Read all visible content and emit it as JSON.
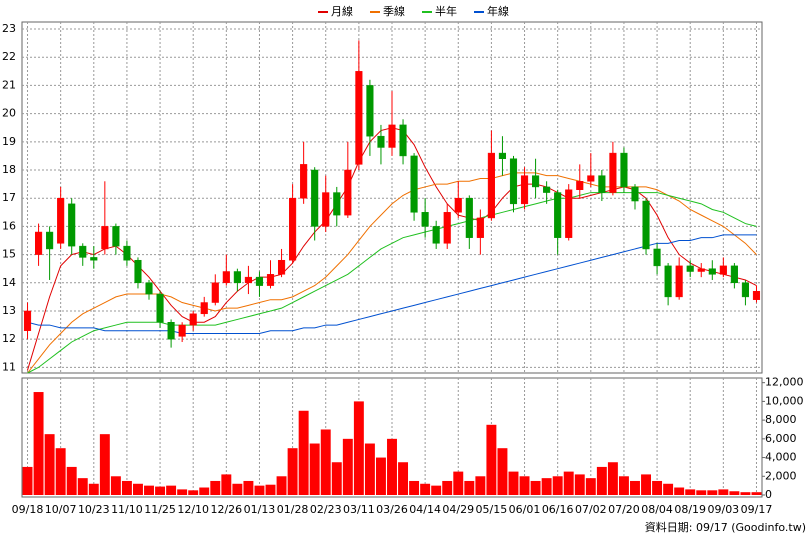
{
  "chart_data": {
    "type": "candlestick",
    "categories": [
      "09/18",
      null,
      null,
      "10/07",
      null,
      null,
      "10/23",
      null,
      null,
      "11/10",
      null,
      null,
      "11/25",
      null,
      null,
      "12/10",
      null,
      null,
      "12/26",
      null,
      null,
      "01/13",
      null,
      null,
      "01/28",
      null,
      null,
      "02/23",
      null,
      null,
      "03/11",
      null,
      null,
      "03/26",
      null,
      null,
      "04/14",
      null,
      null,
      "04/29",
      null,
      null,
      "05/15",
      null,
      null,
      "06/01",
      null,
      null,
      "06/16",
      null,
      null,
      "07/02",
      null,
      null,
      "07/20",
      null,
      null,
      "08/04",
      null,
      null,
      "08/19",
      null,
      null,
      "09/03",
      null,
      null,
      "09/17"
    ],
    "open": [
      12.3,
      15.0,
      15.8,
      15.4,
      16.8,
      15.3,
      14.9,
      15.2,
      16.0,
      15.3,
      14.8,
      14.0,
      13.6,
      12.6,
      12.1,
      12.5,
      12.9,
      13.3,
      14.0,
      14.4,
      14.0,
      14.2,
      13.9,
      14.3,
      14.8,
      17.0,
      18.0,
      16.0,
      17.2,
      16.4,
      18.2,
      21.0,
      19.2,
      18.8,
      19.6,
      18.5,
      16.5,
      16.0,
      15.4,
      16.5,
      17.0,
      15.6,
      16.3,
      18.6,
      18.4,
      16.8,
      17.8,
      17.4,
      17.2,
      15.6,
      17.3,
      17.6,
      17.8,
      17.2,
      18.6,
      17.4,
      16.9,
      15.2,
      14.6,
      13.5,
      14.6,
      14.4,
      14.5,
      14.3,
      14.6,
      14.0,
      13.4
    ],
    "high": [
      13.3,
      16.1,
      16.0,
      17.4,
      17.0,
      15.4,
      15.3,
      17.6,
      16.1,
      15.5,
      14.9,
      14.1,
      13.7,
      12.7,
      12.6,
      13.0,
      13.5,
      14.3,
      15.0,
      14.5,
      14.6,
      14.4,
      14.8,
      15.2,
      17.5,
      19.0,
      18.1,
      17.8,
      17.4,
      19.0,
      22.6,
      21.2,
      19.6,
      20.8,
      19.8,
      18.6,
      17.0,
      16.2,
      16.8,
      17.6,
      17.1,
      16.6,
      19.4,
      19.2,
      18.5,
      18.1,
      18.4,
      17.6,
      17.3,
      17.5,
      18.2,
      18.6,
      18.0,
      19.0,
      18.8,
      17.5,
      17.0,
      15.4,
      14.7,
      14.9,
      14.8,
      14.7,
      14.8,
      14.9,
      14.7,
      14.1,
      13.9
    ],
    "low": [
      12.0,
      14.6,
      14.1,
      15.2,
      15.0,
      14.6,
      14.5,
      15.0,
      15.0,
      14.6,
      13.8,
      13.4,
      12.4,
      11.7,
      11.9,
      12.3,
      12.8,
      13.2,
      13.9,
      13.7,
      13.6,
      13.5,
      13.8,
      14.2,
      14.7,
      16.8,
      15.5,
      15.8,
      16.0,
      16.3,
      18.0,
      18.5,
      18.2,
      18.5,
      18.2,
      16.2,
      15.6,
      15.2,
      15.2,
      16.3,
      15.2,
      15.0,
      16.2,
      17.8,
      16.5,
      16.6,
      17.0,
      16.8,
      15.0,
      15.5,
      17.0,
      17.4,
      16.9,
      17.1,
      17.2,
      16.6,
      15.0,
      14.3,
      13.2,
      13.4,
      14.2,
      14.2,
      14.1,
      14.2,
      13.8,
      13.2,
      13.3
    ],
    "close": [
      13.0,
      15.8,
      15.2,
      17.0,
      15.3,
      14.9,
      14.8,
      16.0,
      15.3,
      14.8,
      14.0,
      13.6,
      12.6,
      12.0,
      12.5,
      12.9,
      13.3,
      14.0,
      14.4,
      14.0,
      14.2,
      13.9,
      14.3,
      14.8,
      17.0,
      18.2,
      16.0,
      17.2,
      16.4,
      18.0,
      21.5,
      19.2,
      18.8,
      19.6,
      18.5,
      16.5,
      16.0,
      15.4,
      16.5,
      17.0,
      15.6,
      16.3,
      18.6,
      18.4,
      16.8,
      17.8,
      17.4,
      17.2,
      15.6,
      17.3,
      17.6,
      17.8,
      17.2,
      18.6,
      17.4,
      16.9,
      15.2,
      14.6,
      13.5,
      14.6,
      14.4,
      14.5,
      14.3,
      14.6,
      14.0,
      13.5,
      13.7
    ],
    "up_color": "#ff0000",
    "down_color": "#009900",
    "ylim": [
      10.8,
      23.25
    ],
    "yticks": [
      11,
      12,
      13,
      14,
      15,
      16,
      17,
      18,
      19,
      20,
      21,
      22,
      23
    ],
    "grid": true,
    "legend": "top",
    "series": [
      {
        "name": "月線",
        "color": "#e00000",
        "values": [
          10.9,
          12.2,
          13.5,
          14.6,
          15.0,
          15.1,
          15.0,
          15.2,
          15.3,
          15.0,
          14.6,
          14.2,
          13.7,
          13.2,
          12.8,
          12.6,
          12.6,
          12.8,
          13.3,
          13.7,
          14.0,
          14.2,
          14.2,
          14.3,
          14.7,
          15.3,
          15.8,
          16.2,
          16.8,
          17.4,
          18.3,
          19.0,
          19.4,
          19.5,
          19.4,
          18.9,
          18.1,
          17.4,
          16.8,
          16.4,
          16.3,
          16.2,
          16.5,
          17.0,
          17.4,
          17.5,
          17.5,
          17.4,
          17.2,
          17.0,
          17.0,
          17.1,
          17.2,
          17.3,
          17.4,
          17.3,
          17.0,
          16.4,
          15.6,
          15.0,
          14.7,
          14.5,
          14.4,
          14.3,
          14.2,
          14.1,
          13.9
        ]
      },
      {
        "name": "季線",
        "color": "#f07000",
        "values": [
          10.8,
          11.3,
          11.8,
          12.2,
          12.6,
          12.9,
          13.1,
          13.3,
          13.5,
          13.6,
          13.6,
          13.6,
          13.6,
          13.5,
          13.3,
          13.2,
          13.1,
          13.0,
          13.1,
          13.1,
          13.2,
          13.3,
          13.4,
          13.4,
          13.5,
          13.7,
          13.9,
          14.2,
          14.6,
          15.0,
          15.5,
          16.0,
          16.4,
          16.8,
          17.1,
          17.3,
          17.4,
          17.5,
          17.5,
          17.6,
          17.6,
          17.7,
          17.7,
          17.8,
          17.9,
          17.9,
          17.9,
          17.8,
          17.8,
          17.7,
          17.6,
          17.5,
          17.4,
          17.4,
          17.4,
          17.4,
          17.4,
          17.3,
          17.1,
          16.9,
          16.6,
          16.4,
          16.2,
          16.0,
          15.7,
          15.4,
          15.0
        ]
      },
      {
        "name": "半年",
        "color": "#20c020",
        "values": [
          10.8,
          11.0,
          11.3,
          11.6,
          11.9,
          12.1,
          12.3,
          12.4,
          12.5,
          12.6,
          12.6,
          12.6,
          12.6,
          12.5,
          12.5,
          12.5,
          12.5,
          12.5,
          12.6,
          12.7,
          12.8,
          12.9,
          13.0,
          13.1,
          13.3,
          13.5,
          13.7,
          13.9,
          14.1,
          14.3,
          14.6,
          14.9,
          15.2,
          15.4,
          15.6,
          15.7,
          15.8,
          15.9,
          16.0,
          16.1,
          16.2,
          16.3,
          16.4,
          16.5,
          16.6,
          16.7,
          16.8,
          16.9,
          17.0,
          17.0,
          17.1,
          17.2,
          17.2,
          17.2,
          17.2,
          17.2,
          17.2,
          17.2,
          17.1,
          17.0,
          16.9,
          16.8,
          16.6,
          16.5,
          16.3,
          16.1,
          16.0
        ]
      },
      {
        "name": "年線",
        "color": "#0050d0",
        "values": [
          12.6,
          12.5,
          12.5,
          12.4,
          12.4,
          12.4,
          12.4,
          12.3,
          12.3,
          12.3,
          12.3,
          12.3,
          12.3,
          12.3,
          12.2,
          12.2,
          12.2,
          12.2,
          12.2,
          12.2,
          12.2,
          12.2,
          12.3,
          12.3,
          12.3,
          12.4,
          12.4,
          12.5,
          12.5,
          12.6,
          12.7,
          12.8,
          12.9,
          13.0,
          13.1,
          13.2,
          13.3,
          13.4,
          13.5,
          13.6,
          13.7,
          13.8,
          13.9,
          14.0,
          14.1,
          14.2,
          14.3,
          14.4,
          14.5,
          14.6,
          14.7,
          14.8,
          14.9,
          15.0,
          15.1,
          15.2,
          15.3,
          15.4,
          15.4,
          15.5,
          15.5,
          15.6,
          15.6,
          15.7,
          15.7,
          15.7,
          15.7
        ]
      }
    ],
    "volume": {
      "color": "#ff0000",
      "ylim": [
        0,
        12500
      ],
      "yticks": [
        0,
        {
          "value": 2000,
          "label": "2,000"
        },
        {
          "value": 4000,
          "label": "4,000"
        },
        {
          "value": 6000,
          "label": "6,000"
        },
        {
          "value": 8000,
          "label": "8,000"
        },
        {
          "value": 10000,
          "label": "10,000"
        },
        {
          "value": 12000,
          "label": "12,000"
        }
      ],
      "values": [
        3000,
        11000,
        6500,
        5000,
        3000,
        1800,
        1200,
        6500,
        2000,
        1500,
        1200,
        1000,
        900,
        1000,
        600,
        500,
        800,
        1500,
        2200,
        1200,
        1500,
        1000,
        1100,
        2000,
        5000,
        9000,
        5500,
        7000,
        3500,
        6000,
        10000,
        5500,
        4000,
        6000,
        3500,
        1500,
        1200,
        1000,
        1500,
        2500,
        1500,
        2000,
        7500,
        5000,
        2500,
        2000,
        1500,
        1800,
        2000,
        2500,
        2200,
        1800,
        3000,
        3500,
        2000,
        1500,
        2200,
        1500,
        1200,
        800,
        600,
        500,
        500,
        600,
        400,
        300,
        300
      ]
    },
    "note": "資料日期: 09/17 (Goodinfo.tw)"
  }
}
